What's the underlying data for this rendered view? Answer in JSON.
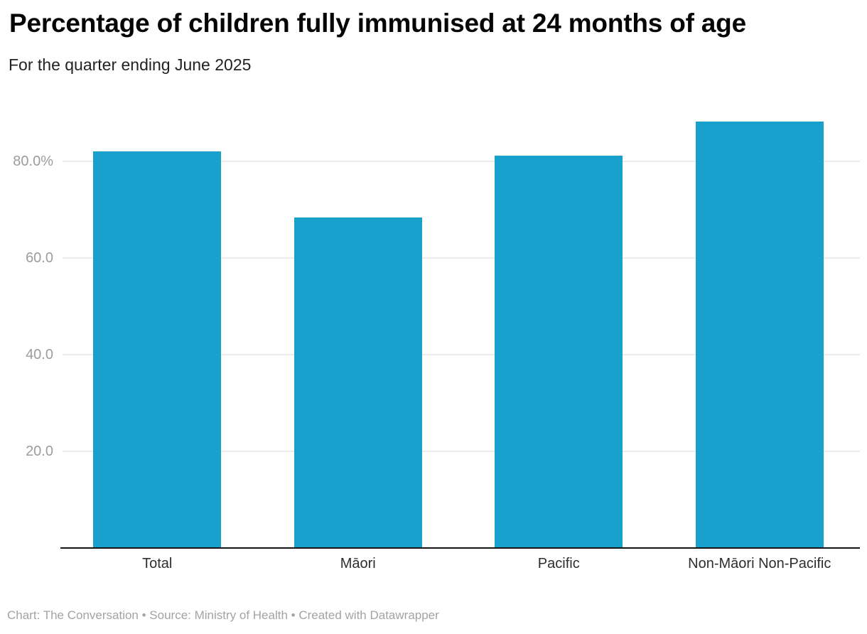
{
  "header": {
    "title": "Percentage of children fully immunised at 24 months of age",
    "subtitle": "For the quarter ending June 2025"
  },
  "chart_data": {
    "type": "bar",
    "title": "Percentage of children fully immunised at 24 months of age",
    "subtitle": "For the quarter ending June 2025",
    "categories": [
      "Total",
      "Māori",
      "Pacific",
      "Non-Māori Non-Pacific"
    ],
    "values": [
      82.0,
      68.4,
      81.2,
      88.2
    ],
    "unit": "%",
    "xlabel": "",
    "ylabel": "",
    "ylim": [
      0,
      90
    ],
    "grid": true,
    "legend": "none",
    "yticks": [
      {
        "value": 20,
        "label": "20.0"
      },
      {
        "value": 40,
        "label": "40.0"
      },
      {
        "value": 60,
        "label": "60.0"
      },
      {
        "value": 80,
        "label": "80.0%"
      }
    ]
  },
  "colors": {
    "bar": "#18a1cd",
    "axis": "#151515",
    "grid": "#ececec",
    "tick_text": "#9c9c9c",
    "category_text": "#2e2e2e",
    "title_text": "#050505",
    "subtitle_text": "#222222",
    "footer_text": "#a3a3a3"
  },
  "footer": {
    "credit": "Chart: The Conversation • Source: Ministry of Health • Created with Datawrapper"
  }
}
